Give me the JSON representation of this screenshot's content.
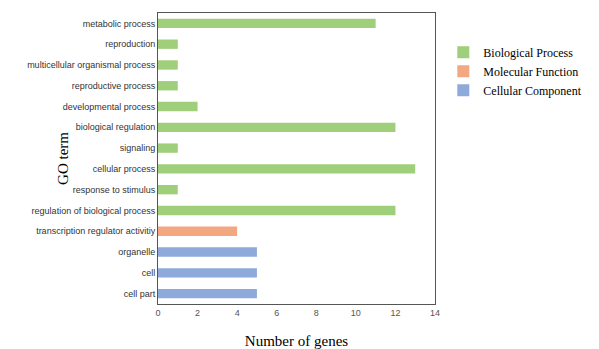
{
  "chart_data": {
    "type": "bar",
    "orientation": "horizontal",
    "x_label": "Number of genes",
    "y_label": "GO term",
    "categories": [
      "metabolic process",
      "reproduction",
      "multicellular organismal process",
      "reproductive process",
      "developmental process",
      "biological regulation",
      "signaling",
      "cellular process",
      "response to stimulus",
      "regulation of biological process",
      "transcription regulator activitiy",
      "organelle",
      "cell",
      "cell part"
    ],
    "series": [
      {
        "name": "Biological Process",
        "color": "#9fcf7a",
        "values": [
          11,
          1,
          1,
          1,
          2,
          12,
          1,
          13,
          1,
          12,
          null,
          null,
          null,
          null
        ]
      },
      {
        "name": "Molecular Function",
        "color": "#f4a882",
        "values": [
          null,
          null,
          null,
          null,
          null,
          null,
          null,
          null,
          null,
          null,
          4,
          null,
          null,
          null
        ]
      },
      {
        "name": "Cellular Component",
        "color": "#8eaadb",
        "values": [
          null,
          null,
          null,
          null,
          null,
          null,
          null,
          null,
          null,
          null,
          null,
          5,
          5,
          5
        ]
      }
    ],
    "xlim": [
      0,
      14
    ],
    "xticks": [
      0,
      2,
      4,
      6,
      8,
      10,
      12,
      14
    ],
    "grid": false,
    "legend": "right"
  }
}
